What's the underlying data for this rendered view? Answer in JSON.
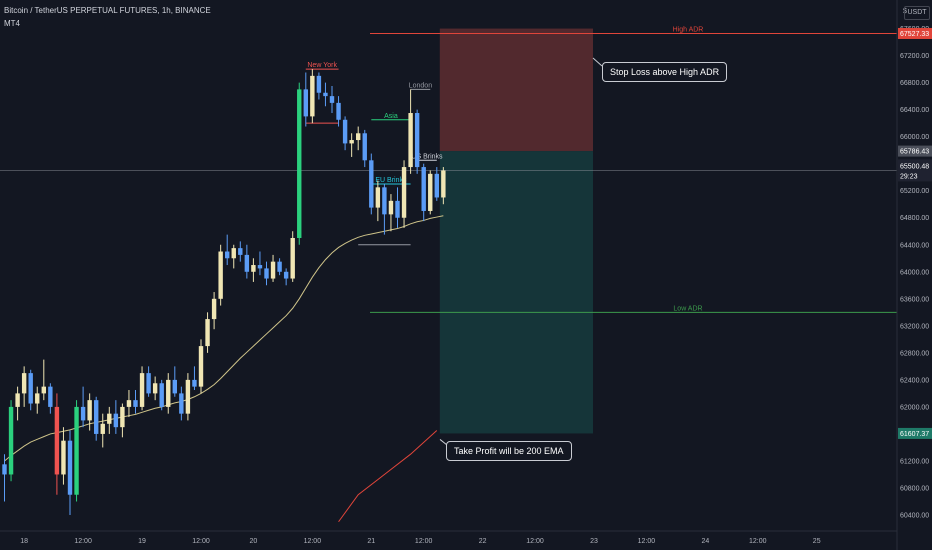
{
  "header": {
    "symbol_line": "Bitcoin / TetherUS PERPETUAL FUTURES, 1h, BINANCE",
    "indicator": "MT4",
    "currency": "USDT"
  },
  "colors": {
    "background": "#131722",
    "up": "#f0e6b4",
    "down": "#5b9cf6",
    "up_strong": "#2bd17e",
    "down_strong": "#ef5350",
    "ema": "#cfc48a",
    "ema200": "#e0453a",
    "high_adr": "#e0453a",
    "low_adr": "#3c9a4c",
    "stop_zone": "#5a2b30",
    "target_zone": "#16383c"
  },
  "annotations": {
    "stop_loss_note": "Stop Loss above High ADR",
    "take_profit_note": "Take Profit will be 200 EMA"
  },
  "chart_data": {
    "type": "candlestick",
    "title": "Bitcoin / TetherUS PERPETUAL FUTURES, 1h, BINANCE",
    "ylim": [
      60200,
      67700
    ],
    "y_ticks": [
      60400,
      60800,
      61200,
      61600,
      62000,
      62400,
      62800,
      63200,
      63600,
      64000,
      64400,
      64800,
      65200,
      65600,
      66000,
      66400,
      66800,
      67200,
      67600
    ],
    "x_ticks": [
      {
        "label": "18",
        "bar": 3
      },
      {
        "label": "12:00",
        "bar": 12
      },
      {
        "label": "19",
        "bar": 21
      },
      {
        "label": "12:00",
        "bar": 30
      },
      {
        "label": "20",
        "bar": 38
      },
      {
        "label": "12:00",
        "bar": 47
      },
      {
        "label": "21",
        "bar": 56
      },
      {
        "label": "12:00",
        "bar": 64
      },
      {
        "label": "22",
        "bar": 73
      },
      {
        "label": "12:00",
        "bar": 81
      },
      {
        "label": "23",
        "bar": 90
      },
      {
        "label": "12:00",
        "bar": 98
      },
      {
        "label": "24",
        "bar": 107
      },
      {
        "label": "12:00",
        "bar": 115
      },
      {
        "label": "25",
        "bar": 124
      }
    ],
    "candles": [
      [
        61150,
        61300,
        60600,
        61000
      ],
      [
        61000,
        62100,
        60900,
        62000
      ],
      [
        62000,
        62300,
        61800,
        62200
      ],
      [
        62200,
        62600,
        62000,
        62500
      ],
      [
        62500,
        62550,
        61950,
        62050
      ],
      [
        62050,
        62300,
        61900,
        62200
      ],
      [
        62200,
        62700,
        62100,
        62300
      ],
      [
        62300,
        62350,
        61900,
        62000
      ],
      [
        62000,
        62200,
        60700,
        61000
      ],
      [
        61000,
        61700,
        60850,
        61500
      ],
      [
        61500,
        61650,
        60400,
        60700
      ],
      [
        60700,
        62100,
        60600,
        62000
      ],
      [
        62000,
        62300,
        61700,
        61800
      ],
      [
        61800,
        62200,
        61650,
        62100
      ],
      [
        62100,
        62150,
        61500,
        61600
      ],
      [
        61600,
        61900,
        61400,
        61750
      ],
      [
        61750,
        62000,
        61600,
        61900
      ],
      [
        61900,
        62100,
        61600,
        61700
      ],
      [
        61700,
        62050,
        61550,
        62000
      ],
      [
        62000,
        62250,
        61850,
        62100
      ],
      [
        62100,
        62250,
        61900,
        62000
      ],
      [
        62000,
        62600,
        61950,
        62500
      ],
      [
        62500,
        62600,
        62150,
        62200
      ],
      [
        62200,
        62450,
        62100,
        62350
      ],
      [
        62350,
        62400,
        61950,
        62000
      ],
      [
        62000,
        62500,
        61900,
        62400
      ],
      [
        62400,
        62600,
        62150,
        62200
      ],
      [
        62200,
        62300,
        61800,
        61900
      ],
      [
        61900,
        62500,
        61800,
        62400
      ],
      [
        62400,
        62600,
        62250,
        62300
      ],
      [
        62300,
        63000,
        62200,
        62900
      ],
      [
        62900,
        63400,
        62800,
        63300
      ],
      [
        63300,
        63700,
        63150,
        63600
      ],
      [
        63600,
        64400,
        63500,
        64300
      ],
      [
        64300,
        64550,
        64100,
        64200
      ],
      [
        64200,
        64400,
        64050,
        64350
      ],
      [
        64350,
        64450,
        64150,
        64250
      ],
      [
        64250,
        64400,
        63900,
        64000
      ],
      [
        64000,
        64200,
        63850,
        64100
      ],
      [
        64100,
        64300,
        63950,
        64050
      ],
      [
        64050,
        64150,
        63800,
        63900
      ],
      [
        63900,
        64250,
        63850,
        64150
      ],
      [
        64150,
        64200,
        63950,
        64000
      ],
      [
        64000,
        64050,
        63800,
        63900
      ],
      [
        63900,
        64600,
        63850,
        64500
      ],
      [
        64500,
        66800,
        64400,
        66700
      ],
      [
        66700,
        66950,
        66150,
        66300
      ],
      [
        66300,
        67000,
        66200,
        66900
      ],
      [
        66900,
        66950,
        66550,
        66650
      ],
      [
        66650,
        66800,
        66450,
        66600
      ],
      [
        66600,
        66750,
        66350,
        66500
      ],
      [
        66500,
        66600,
        66150,
        66250
      ],
      [
        66250,
        66300,
        65800,
        65900
      ],
      [
        65900,
        66050,
        65700,
        65950
      ],
      [
        65950,
        66150,
        65800,
        66050
      ],
      [
        66050,
        66100,
        65550,
        65650
      ],
      [
        65650,
        65750,
        64850,
        64950
      ],
      [
        64950,
        65350,
        64750,
        65250
      ],
      [
        65250,
        65300,
        64550,
        64850
      ],
      [
        64850,
        65150,
        64600,
        65050
      ],
      [
        65050,
        65250,
        64650,
        64800
      ],
      [
        64800,
        65650,
        64650,
        65550
      ],
      [
        65550,
        66700,
        65450,
        66350
      ],
      [
        66350,
        66400,
        65450,
        65550
      ],
      [
        65550,
        65600,
        64750,
        64900
      ],
      [
        64900,
        65500,
        64850,
        65450
      ],
      [
        65450,
        65550,
        65050,
        65100
      ],
      [
        65100,
        65550,
        65000,
        65500
      ]
    ],
    "series": [
      {
        "type": "ema",
        "values": [
          61200,
          61280,
          61350,
          61420,
          61480,
          61520,
          61560,
          61600,
          61620,
          61640,
          61660,
          61690,
          61720,
          61750,
          61770,
          61790,
          61810,
          61830,
          61850,
          61870,
          61890,
          61920,
          61950,
          61980,
          62000,
          62030,
          62060,
          62080,
          62110,
          62150,
          62200,
          62260,
          62330,
          62420,
          62520,
          62620,
          62720,
          62810,
          62900,
          62990,
          63080,
          63170,
          63260,
          63350,
          63460,
          63600,
          63760,
          63920,
          64060,
          64180,
          64280,
          64360,
          64420,
          64470,
          64510,
          64540,
          64560,
          64580,
          64600,
          64620,
          64640,
          64670,
          64710,
          64740,
          64760,
          64790,
          64810,
          64830
        ]
      },
      {
        "type": "ema200",
        "points": [
          [
            51,
            60300
          ],
          [
            54,
            60700
          ],
          [
            58,
            61000
          ],
          [
            62,
            61300
          ],
          [
            66,
            61650
          ]
        ]
      }
    ],
    "levels": [
      {
        "name": "High ADR",
        "value": 67527.33,
        "label": "High ADR",
        "price_label": "67527.33"
      },
      {
        "name": "Low ADR",
        "value": 63400,
        "label": "Low ADR"
      }
    ],
    "sessions": [
      {
        "label": "New York",
        "bar_start": 46,
        "bar_end": 51,
        "value": 67000
      },
      {
        "label": "Asia",
        "bar_start": 56,
        "bar_end": 62,
        "value": 66250
      },
      {
        "label": "London",
        "bar_start": 62,
        "bar_end": 65,
        "value": 66700
      },
      {
        "label": "EU Brinks",
        "bar_start": 56,
        "bar_end": 62,
        "value": 65300
      },
      {
        "label": "US Brinks",
        "bar_start": 63,
        "bar_end": 66,
        "value": 65650
      }
    ],
    "position": {
      "entry": 65786.43,
      "stop": 67600,
      "target": 61607.37,
      "bar_start": 66,
      "bar_end": 88,
      "entry_label": "65786.43",
      "target_label": "61607.37"
    },
    "current_price": {
      "value": 65500.48,
      "label": "65500.48",
      "countdown": "29:23"
    },
    "top_label": "67600.00",
    "bottom_label": "60400.00"
  }
}
